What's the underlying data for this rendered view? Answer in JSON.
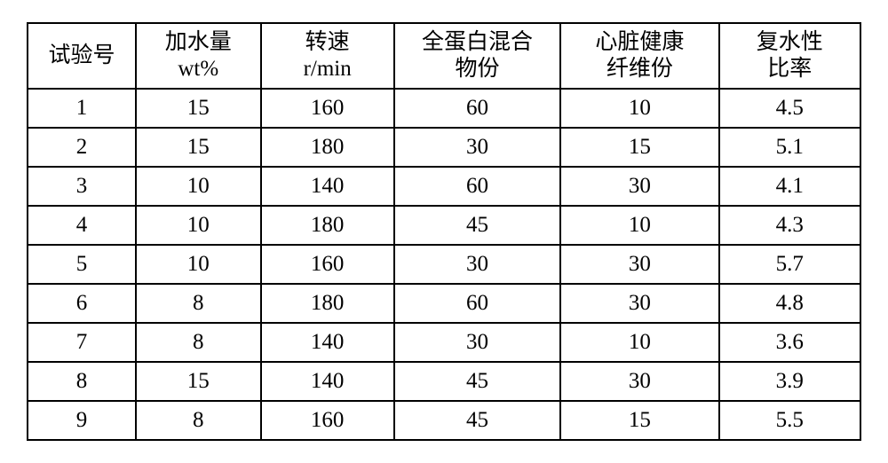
{
  "table": {
    "columns": [
      {
        "line1": "试验号",
        "line2": ""
      },
      {
        "line1": "加水量",
        "line2": "wt%"
      },
      {
        "line1": "转速",
        "line2": "r/min"
      },
      {
        "line1": "全蛋白混合",
        "line2": "物份"
      },
      {
        "line1": "心脏健康",
        "line2": "纤维份"
      },
      {
        "line1": "复水性",
        "line2": "比率"
      }
    ],
    "rows": [
      [
        "1",
        "15",
        "160",
        "60",
        "10",
        "4.5"
      ],
      [
        "2",
        "15",
        "180",
        "30",
        "15",
        "5.1"
      ],
      [
        "3",
        "10",
        "140",
        "60",
        "30",
        "4.1"
      ],
      [
        "4",
        "10",
        "180",
        "45",
        "10",
        "4.3"
      ],
      [
        "5",
        "10",
        "160",
        "30",
        "30",
        "5.7"
      ],
      [
        "6",
        "8",
        "180",
        "60",
        "30",
        "4.8"
      ],
      [
        "7",
        "8",
        "140",
        "30",
        "10",
        "3.6"
      ],
      [
        "8",
        "15",
        "140",
        "45",
        "30",
        "3.9"
      ],
      [
        "9",
        "8",
        "160",
        "45",
        "15",
        "5.5"
      ]
    ],
    "border_color": "#000000",
    "background_color": "#ffffff",
    "text_color": "#000000",
    "header_fontsize": 25,
    "cell_fontsize": 25,
    "font_family": "SimSun"
  }
}
